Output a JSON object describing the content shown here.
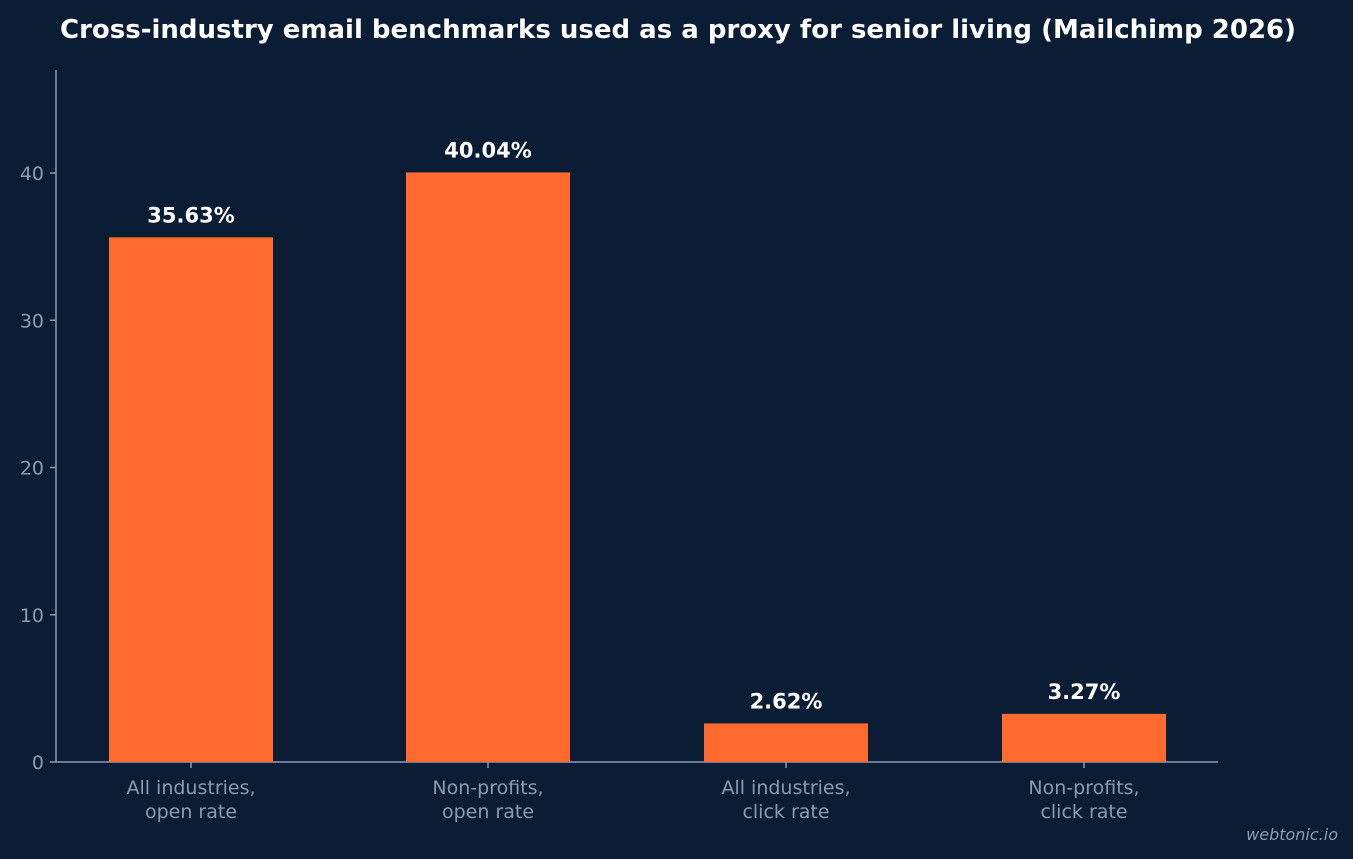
{
  "chart_data": {
    "type": "bar",
    "title": "Cross-industry email benchmarks used as a proxy for senior living (Mailchimp 2026)",
    "categories": [
      [
        "All industries,",
        "open rate"
      ],
      [
        "Non-profits,",
        "open rate"
      ],
      [
        "All industries,",
        "click rate"
      ],
      [
        "Non-profits,",
        "click rate"
      ]
    ],
    "values": [
      35.63,
      40.04,
      2.62,
      3.27
    ],
    "value_labels": [
      "35.63%",
      "40.04%",
      "2.62%",
      "3.27%"
    ],
    "yticks": [
      0,
      10,
      20,
      30,
      40
    ],
    "ylim": [
      0,
      47
    ],
    "xlabel": "",
    "ylabel": "",
    "grid": false,
    "bar_color": "#ff6b2f",
    "background_color": "#0b1c35"
  },
  "watermark": "webtonic.io"
}
